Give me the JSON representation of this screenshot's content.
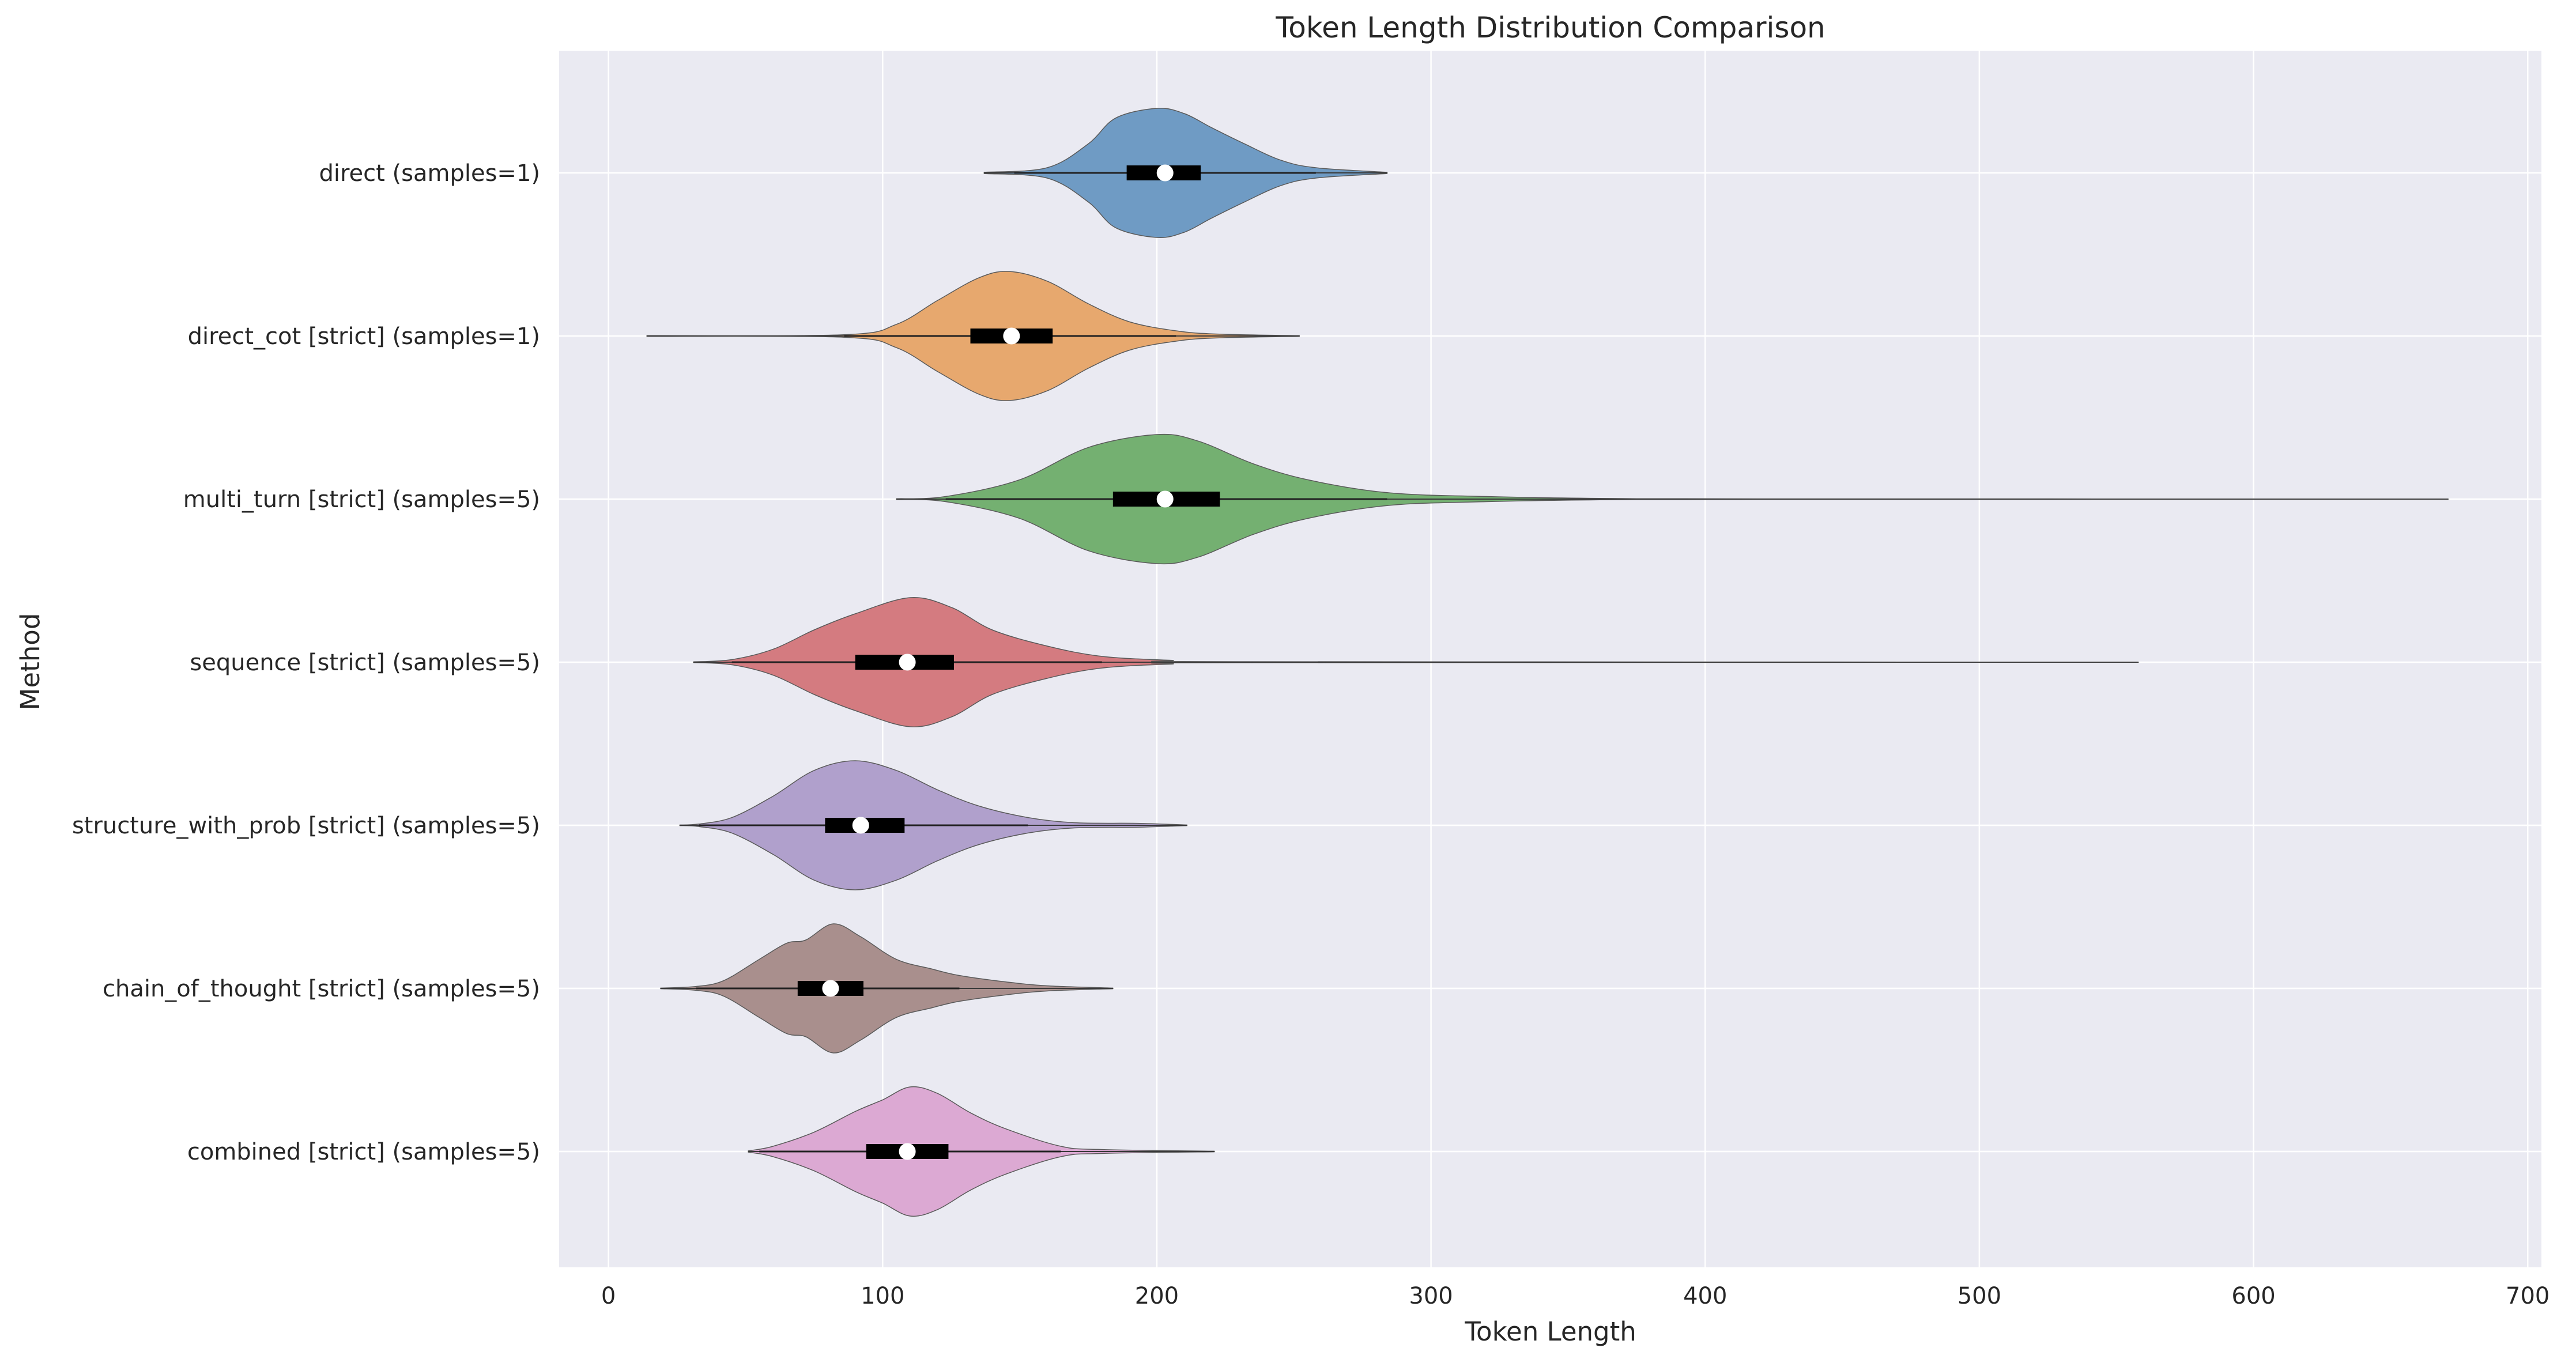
{
  "chart_data": {
    "type": "violin",
    "orientation": "horizontal",
    "title": "Token Length Distribution Comparison",
    "xlabel": "Token Length",
    "ylabel": "Method",
    "xlim": [
      -18,
      705
    ],
    "xticks": [
      0,
      100,
      200,
      300,
      400,
      500,
      600,
      700
    ],
    "grid": true,
    "legend": "none",
    "series": [
      {
        "name": "direct (samples=1)",
        "color": "#6f9bc4",
        "min": 137,
        "q1": 189,
        "median": 203,
        "q3": 216,
        "max": 284,
        "whisker_low": 148,
        "whisker_high": 258,
        "density": [
          [
            137,
            0.01
          ],
          [
            160,
            0.08
          ],
          [
            175,
            0.45
          ],
          [
            185,
            0.85
          ],
          [
            200,
            1.0
          ],
          [
            210,
            0.92
          ],
          [
            220,
            0.7
          ],
          [
            232,
            0.45
          ],
          [
            245,
            0.2
          ],
          [
            258,
            0.08
          ],
          [
            284,
            0.01
          ]
        ]
      },
      {
        "name": "direct_cot [strict] (samples=1)",
        "color": "#e7a86e",
        "min": 14,
        "q1": 132,
        "median": 147,
        "q3": 162,
        "max": 252,
        "whisker_low": 86,
        "whisker_high": 207,
        "density": [
          [
            14,
            0.005
          ],
          [
            86,
            0.02
          ],
          [
            105,
            0.18
          ],
          [
            120,
            0.55
          ],
          [
            135,
            0.9
          ],
          [
            146,
            1.0
          ],
          [
            160,
            0.85
          ],
          [
            175,
            0.5
          ],
          [
            190,
            0.22
          ],
          [
            207,
            0.08
          ],
          [
            222,
            0.03
          ],
          [
            252,
            0.005
          ]
        ]
      },
      {
        "name": "multi_turn [strict] (samples=5)",
        "color": "#74b071",
        "min": 105,
        "q1": 184,
        "median": 203,
        "q3": 223,
        "max": 671,
        "whisker_low": 123,
        "whisker_high": 284,
        "density": [
          [
            105,
            0.005
          ],
          [
            123,
            0.04
          ],
          [
            150,
            0.3
          ],
          [
            175,
            0.8
          ],
          [
            200,
            1.0
          ],
          [
            215,
            0.9
          ],
          [
            235,
            0.55
          ],
          [
            255,
            0.3
          ],
          [
            284,
            0.1
          ],
          [
            320,
            0.04
          ],
          [
            365,
            0.01
          ],
          [
            420,
            0.004
          ],
          [
            671,
            0.002
          ]
        ]
      },
      {
        "name": "sequence [strict] (samples=5)",
        "color": "#d47b80",
        "min": 31,
        "q1": 90,
        "median": 109,
        "q3": 126,
        "max": 558,
        "whisker_low": 45,
        "whisker_high": 180,
        "density": [
          [
            31,
            0.005
          ],
          [
            45,
            0.04
          ],
          [
            60,
            0.2
          ],
          [
            75,
            0.5
          ],
          [
            90,
            0.75
          ],
          [
            110,
            1.0
          ],
          [
            125,
            0.85
          ],
          [
            140,
            0.5
          ],
          [
            160,
            0.25
          ],
          [
            180,
            0.09
          ],
          [
            205,
            0.03
          ],
          [
            230,
            0.008
          ],
          [
            558,
            0.002
          ]
        ]
      },
      {
        "name": "structure_with_prob [strict] (samples=5)",
        "color": "#b0a0cc",
        "min": 26,
        "q1": 79,
        "median": 92,
        "q3": 108,
        "max": 211,
        "whisker_low": 33,
        "whisker_high": 153,
        "density": [
          [
            26,
            0.005
          ],
          [
            33,
            0.02
          ],
          [
            45,
            0.12
          ],
          [
            60,
            0.45
          ],
          [
            75,
            0.85
          ],
          [
            90,
            1.0
          ],
          [
            105,
            0.85
          ],
          [
            120,
            0.55
          ],
          [
            135,
            0.3
          ],
          [
            153,
            0.12
          ],
          [
            170,
            0.04
          ],
          [
            193,
            0.03
          ],
          [
            211,
            0.005
          ]
        ]
      },
      {
        "name": "chain_of_thought [strict] (samples=5)",
        "color": "#a98f8d",
        "min": 19,
        "q1": 69,
        "median": 81,
        "q3": 93,
        "max": 184,
        "whisker_low": 32,
        "whisker_high": 128,
        "density": [
          [
            19,
            0.005
          ],
          [
            32,
            0.03
          ],
          [
            42,
            0.12
          ],
          [
            55,
            0.45
          ],
          [
            65,
            0.7
          ],
          [
            72,
            0.75
          ],
          [
            82,
            1.0
          ],
          [
            92,
            0.8
          ],
          [
            105,
            0.45
          ],
          [
            118,
            0.3
          ],
          [
            128,
            0.2
          ],
          [
            145,
            0.1
          ],
          [
            160,
            0.04
          ],
          [
            184,
            0.005
          ]
        ]
      },
      {
        "name": "combined [strict] (samples=5)",
        "color": "#dca9d3",
        "min": 51,
        "q1": 94,
        "median": 109,
        "q3": 124,
        "max": 221,
        "whisker_low": 55,
        "whisker_high": 165,
        "density": [
          [
            51,
            0.01
          ],
          [
            60,
            0.08
          ],
          [
            75,
            0.3
          ],
          [
            90,
            0.62
          ],
          [
            100,
            0.8
          ],
          [
            110,
            1.0
          ],
          [
            120,
            0.9
          ],
          [
            132,
            0.6
          ],
          [
            145,
            0.35
          ],
          [
            165,
            0.08
          ],
          [
            180,
            0.03
          ],
          [
            221,
            0.005
          ]
        ]
      }
    ]
  }
}
